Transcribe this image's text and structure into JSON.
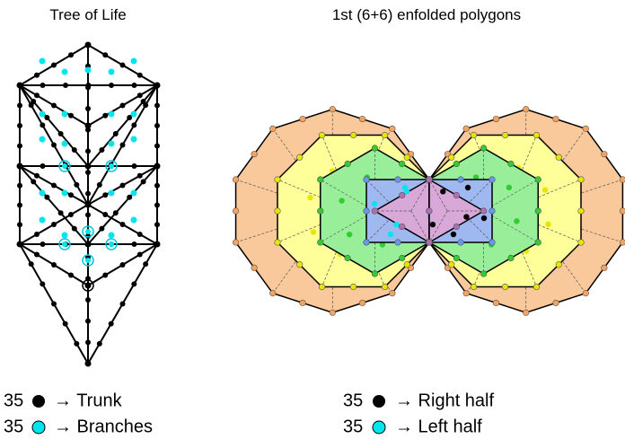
{
  "left_panel": {
    "title": "Tree of Life",
    "legend": [
      {
        "count": 35,
        "label": "→ Trunk"
      },
      {
        "count": 35,
        "label": "→ Branches"
      }
    ]
  },
  "right_panel": {
    "title": "1st (6+6) enfolded polygons",
    "legend": [
      {
        "count": 35,
        "label": "→ Right half"
      },
      {
        "count": 35,
        "label": "→ Left half"
      }
    ]
  }
}
